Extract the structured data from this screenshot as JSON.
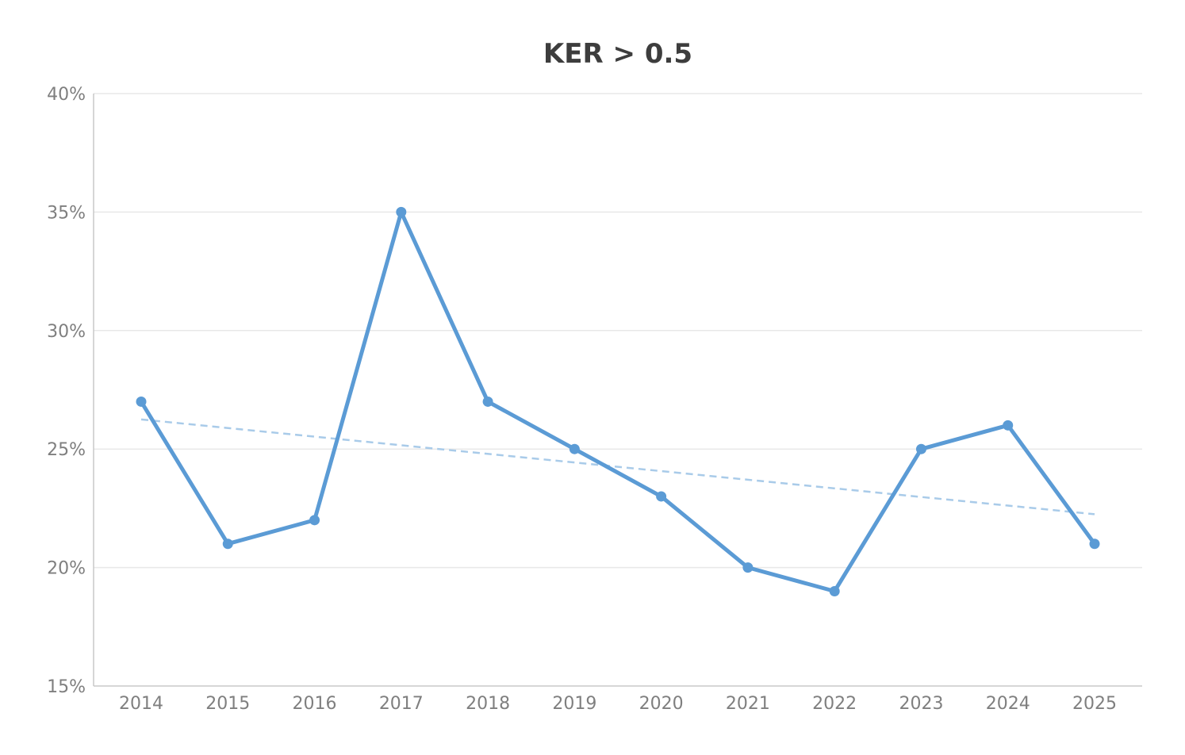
{
  "chart_data": {
    "type": "line",
    "title": "KER > 0.5",
    "xlabel": "",
    "ylabel": "",
    "categories": [
      "2014",
      "2015",
      "2016",
      "2017",
      "2018",
      "2019",
      "2020",
      "2021",
      "2022",
      "2023",
      "2024",
      "2025"
    ],
    "series": [
      {
        "name": "KER > 0.5",
        "values": [
          27,
          21,
          22,
          35,
          27,
          25,
          23,
          20,
          19,
          25,
          26,
          21
        ],
        "color": "#5b9bd5",
        "markers": true
      },
      {
        "name": "Linear trend",
        "values": [
          26.25,
          22.25
        ],
        "x_range": [
          "2014",
          "2025"
        ],
        "color": "#a9cbe9",
        "style": "dashed"
      }
    ],
    "ylim": [
      15,
      40
    ],
    "yticks": [
      "15%",
      "20%",
      "25%",
      "30%",
      "35%",
      "40%"
    ],
    "ytick_values": [
      15,
      20,
      25,
      30,
      35,
      40
    ],
    "grid": true,
    "legend": "none"
  },
  "colors": {
    "line": "#5b9bd5",
    "trend": "#a9cbe9",
    "grid": "#e8e8e8",
    "axis": "#c8c8c8",
    "tick_text": "#7f7f7f",
    "title": "#3d3d3d"
  }
}
